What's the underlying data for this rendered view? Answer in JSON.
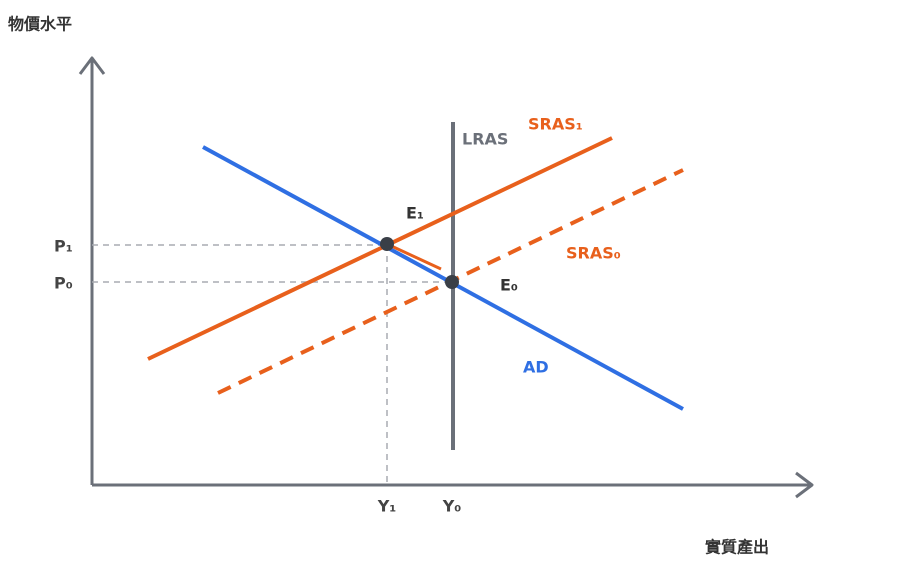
{
  "y_axis_label": "物價水平",
  "x_axis_label": "實質產出",
  "curves": {
    "lras": "LRAS",
    "sras1": "SRAS₁",
    "sras0": "SRAS₀",
    "ad": "AD"
  },
  "points": {
    "e1": "E₁",
    "e0": "E₀"
  },
  "ticks": {
    "p1": "P₁",
    "p0": "P₀",
    "y1": "Y₁",
    "y0": "Y₀"
  }
}
